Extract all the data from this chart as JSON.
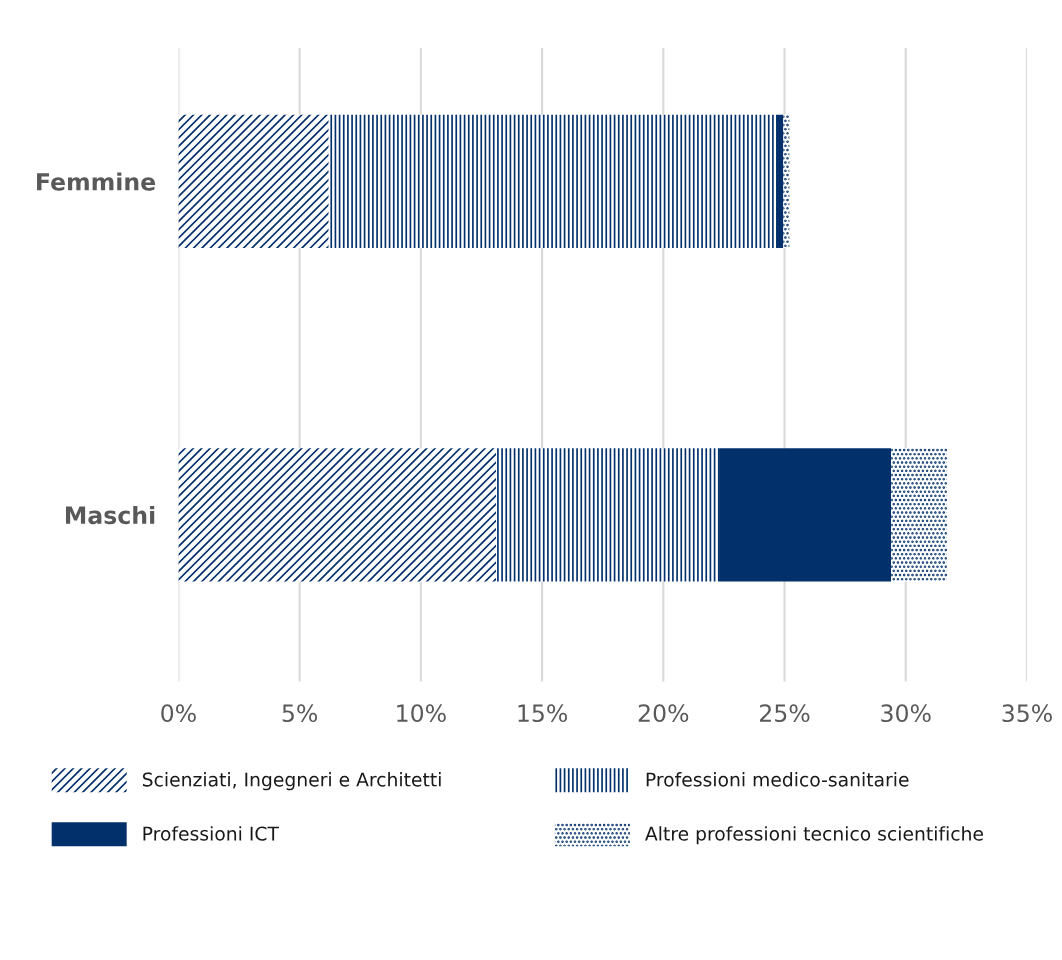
{
  "chart_data": {
    "type": "bar",
    "orientation": "horizontal",
    "stacked": true,
    "categories": [
      "Femmine",
      "Maschi"
    ],
    "series": [
      {
        "name": "Scienziati, Ingegneri e Architetti",
        "color": "#02306b",
        "values": [
          6.2,
          13.1
        ]
      },
      {
        "name": "Professioni medico-sanitarie",
        "color": "#02306b",
        "values": [
          18.45,
          9.2
        ]
      },
      {
        "name": "Professioni ICT",
        "color": "#02306b",
        "values": [
          0.3,
          7.1
        ]
      },
      {
        "name": "Altre professioni tecnico scientifiche",
        "color": "#02306b",
        "values": [
          0.25,
          2.3
        ]
      }
    ],
    "xlim": [
      0,
      35
    ],
    "xticks": [
      {
        "value": 0,
        "label": "0%"
      },
      {
        "value": 5,
        "label": "5%"
      },
      {
        "value": 10,
        "label": "10%"
      },
      {
        "value": 15,
        "label": "15%"
      },
      {
        "value": 20,
        "label": "20%"
      },
      {
        "value": 25,
        "label": "25%"
      },
      {
        "value": 30,
        "label": "30%"
      },
      {
        "value": 35,
        "label": "35%"
      }
    ],
    "grid": "x",
    "legend": "bottom"
  }
}
